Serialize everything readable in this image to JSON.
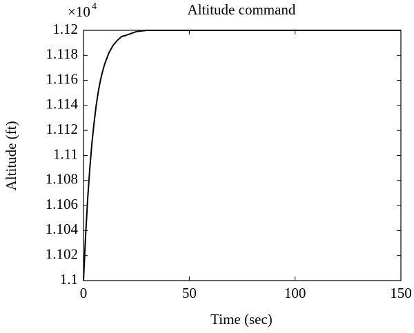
{
  "chart_data": {
    "type": "line",
    "title": "Altitude command",
    "x_label": "Time (sec)",
    "y_label": "Altitude (ft)",
    "y_scale_label": "×10",
    "y_scale_exponent": "4",
    "x": [
      0,
      1,
      2,
      3,
      4,
      5,
      6,
      7,
      8,
      9,
      10,
      12,
      14,
      16,
      18,
      20,
      25,
      30,
      150
    ],
    "series": [
      {
        "color": "#000000",
        "values": [
          1.1,
          1.1036,
          1.1066,
          1.109,
          1.111,
          1.1126,
          1.114,
          1.1151,
          1.116,
          1.1167,
          1.1173,
          1.1182,
          1.1188,
          1.1192,
          1.1195,
          1.1196,
          1.1199,
          1.12,
          1.12
        ]
      }
    ],
    "xlim": [
      0,
      150
    ],
    "xticks": [
      0,
      50,
      100,
      150
    ],
    "ylim": [
      1.1,
      1.12
    ],
    "yticks": [
      1.1,
      1.102,
      1.104,
      1.106,
      1.108,
      1.11,
      1.112,
      1.114,
      1.116,
      1.118,
      1.12
    ],
    "grid": false
  }
}
